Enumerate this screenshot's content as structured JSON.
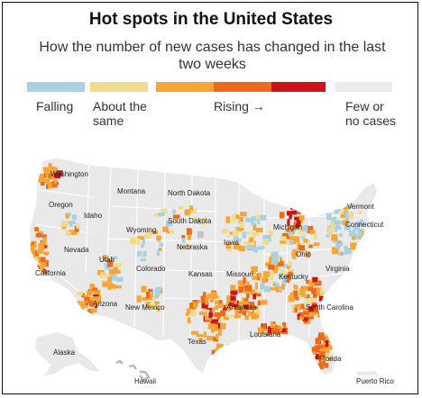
{
  "title": "Hot spots in the United States",
  "subtitle": "How the number of new cases has changed in the last two weeks",
  "legend": {
    "falling": {
      "label": "Falling",
      "color": "#a9d1e2"
    },
    "same": {
      "label": "About the same",
      "color": "#f0dc8c"
    },
    "rising": {
      "label": "Rising →",
      "colors": [
        "#f7a534",
        "#ed6a1c",
        "#c8141a"
      ]
    },
    "few": {
      "label": "Few or no cases",
      "color": "#ececec"
    }
  },
  "map": {
    "land_color": "#e9e9e9",
    "border_color": "#ffffff",
    "places": {
      "washington": "Washington",
      "oregon": "Oregon",
      "idaho": "Idaho",
      "montana": "Montana",
      "north_dakota": "North Dakota",
      "south_dakota": "South Dakota",
      "wyoming": "Wyoming",
      "nevada": "Nevada",
      "utah": "Utah",
      "colorado": "Colorado",
      "california": "California",
      "arizona": "Arizona",
      "new_mexico": "New Mexico",
      "nebraska": "Nebraska",
      "kansas": "Kansas",
      "texas": "Texas",
      "iowa": "Iowa",
      "missouri": "Missouri",
      "arkansas": "Arkansas",
      "louisiana": "Louisiana",
      "michigan": "Michigan",
      "ohio": "Ohio",
      "kentucky": "Kentucky",
      "virginia": "Virginia",
      "south_carolina": "South Carolina",
      "florida": "Florida",
      "vermont": "Vermont",
      "connecticut": "Connecticut",
      "alaska": "Alaska",
      "hawaii": "Hawaii",
      "puerto_rico": "Puerto Rico"
    }
  }
}
